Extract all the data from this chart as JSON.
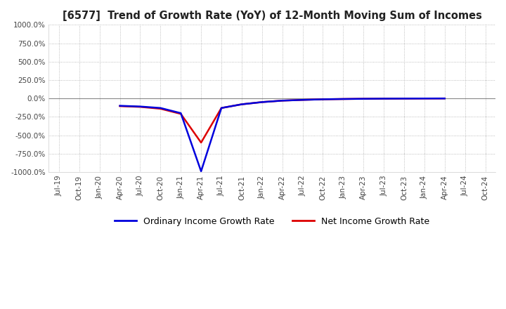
{
  "title": "[6577]  Trend of Growth Rate (YoY) of 12-Month Moving Sum of Incomes",
  "ylim": [
    -1000,
    1000
  ],
  "yticks": [
    1000,
    750,
    500,
    250,
    0,
    -250,
    -500,
    -750,
    -1000
  ],
  "ordinary_color": "#0000DD",
  "net_color": "#DD0000",
  "legend_ordinary": "Ordinary Income Growth Rate",
  "legend_net": "Net Income Growth Rate",
  "background_color": "#FFFFFF",
  "grid_color": "#AAAAAA",
  "x_labels": [
    "Jul-19",
    "Oct-19",
    "Jan-20",
    "Apr-20",
    "Jul-20",
    "Oct-20",
    "Jan-21",
    "Apr-21",
    "Jul-21",
    "Oct-21",
    "Jan-22",
    "Apr-22",
    "Jul-22",
    "Oct-22",
    "Jan-23",
    "Apr-23",
    "Jul-23",
    "Oct-23",
    "Jan-24",
    "Apr-24",
    "Jul-24",
    "Oct-24"
  ],
  "ordinary_values": [
    null,
    null,
    null,
    -100,
    -110,
    -130,
    -200,
    -990,
    -130,
    -80,
    -50,
    -30,
    -20,
    -12,
    -8,
    -5,
    -3,
    -2,
    -1,
    -0.5,
    null,
    null
  ],
  "net_values": [
    null,
    null,
    null,
    -105,
    -115,
    -140,
    -210,
    -600,
    -130,
    -80,
    -50,
    -30,
    -20,
    -12,
    -8,
    -5,
    -3,
    -2,
    -1,
    -0.5,
    null,
    null
  ]
}
